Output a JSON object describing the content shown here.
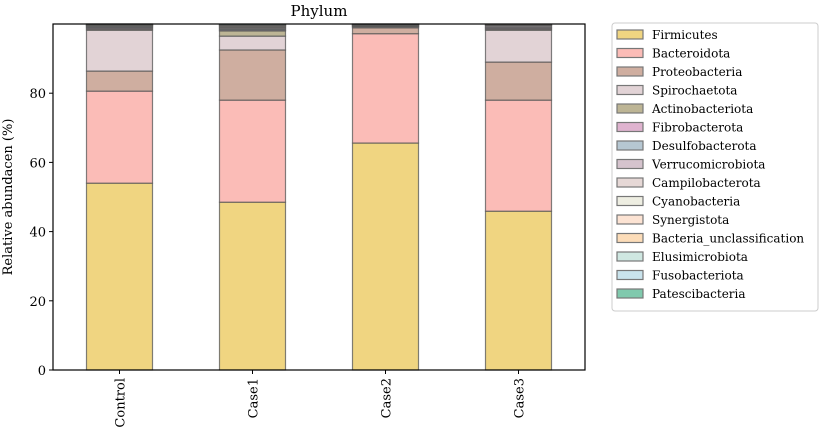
{
  "chart_data": {
    "type": "bar",
    "stacked": true,
    "title": "Phylum",
    "xlabel": "",
    "ylabel": "Relative abundacen (%)",
    "ylim": [
      0,
      100
    ],
    "yticks": [
      0,
      20,
      40,
      60,
      80
    ],
    "grid": false,
    "legend_placement": "outside-right",
    "categories": [
      "Control",
      "Case1",
      "Case2",
      "Case3"
    ],
    "series": [
      {
        "name": "Firmicutes",
        "color": "#f0d581",
        "values": [
          54.0,
          48.5,
          65.6,
          45.9
        ]
      },
      {
        "name": "Bacteroidota",
        "color": "#fbbcb7",
        "values": [
          26.6,
          29.5,
          31.6,
          32.1
        ]
      },
      {
        "name": "Proteobacteria",
        "color": "#cfaea0",
        "values": [
          5.8,
          14.5,
          1.7,
          11.0
        ]
      },
      {
        "name": "Spirochaetota",
        "color": "#e2d3d6",
        "values": [
          11.8,
          4.0,
          0.2,
          9.2
        ]
      },
      {
        "name": "Actinobacteriota",
        "color": "#bdb595",
        "values": [
          0.3,
          1.5,
          0.2,
          0.3
        ]
      },
      {
        "name": "Fibrobacterota",
        "color": "#dfb3cf",
        "values": [
          0.3,
          0.2,
          0.1,
          0.3
        ]
      },
      {
        "name": "Desulfobacterota",
        "color": "#b6c7d2",
        "values": [
          0.2,
          0.3,
          0.1,
          0.2
        ]
      },
      {
        "name": "Verrucomicrobiota",
        "color": "#d5c3cd",
        "values": [
          0.2,
          0.2,
          0.1,
          0.4
        ]
      },
      {
        "name": "Campilobacterota",
        "color": "#e6d8d6",
        "values": [
          0.2,
          0.3,
          0.1,
          0.2
        ]
      },
      {
        "name": "Cyanobacteria",
        "color": "#eeeee2",
        "values": [
          0.1,
          0.2,
          0.1,
          0.1
        ]
      },
      {
        "name": "Synergistota",
        "color": "#fce3d3",
        "values": [
          0.1,
          0.2,
          0.1,
          0.1
        ]
      },
      {
        "name": "Bacteria_unclassification",
        "color": "#fcdcb8",
        "values": [
          0.1,
          0.2,
          0.1,
          0.1
        ]
      },
      {
        "name": "Elusimicrobiota",
        "color": "#cfe7e1",
        "values": [
          0.1,
          0.1,
          0.0,
          0.0
        ]
      },
      {
        "name": "Fusobacteriota",
        "color": "#c9e3ec",
        "values": [
          0.1,
          0.1,
          0.0,
          0.0
        ]
      },
      {
        "name": "Patescibacteria",
        "color": "#80c9ad",
        "values": [
          0.1,
          0.1,
          0.0,
          0.0
        ]
      }
    ]
  }
}
